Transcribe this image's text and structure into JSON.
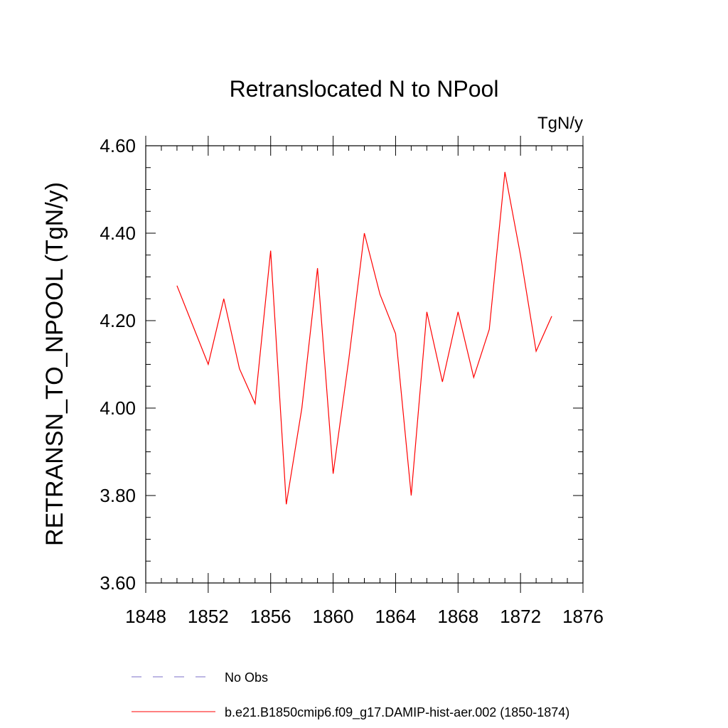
{
  "chart_data": {
    "type": "line",
    "title": "Retranslocated N to NPool",
    "units_label": "TgN/y",
    "ylabel": "RETRANSN_TO_NPOOL  (TgN/y)",
    "xlabel": "",
    "xlim": [
      1848,
      1876
    ],
    "ylim": [
      3.6,
      4.6
    ],
    "x_ticks": [
      1848,
      1852,
      1856,
      1860,
      1864,
      1868,
      1872,
      1876
    ],
    "x_tick_labels": [
      "1848",
      "1852",
      "1856",
      "1860",
      "1864",
      "1868",
      "1872",
      "1876"
    ],
    "y_ticks": [
      3.6,
      3.8,
      4.0,
      4.2,
      4.4,
      4.6
    ],
    "y_tick_labels": [
      "3.60",
      "3.80",
      "4.00",
      "4.20",
      "4.40",
      "4.60"
    ],
    "grid": false,
    "legend_position": "bottom",
    "series": [
      {
        "name": "No Obs",
        "color": "#7b6fc7",
        "dash": "dashed",
        "x": [],
        "values": []
      },
      {
        "name": "b.e21.B1850cmip6.f09_g17.DAMIP-hist-aer.002 (1850-1874)",
        "color": "#ff0000",
        "dash": "solid",
        "x": [
          1850,
          1851,
          1852,
          1853,
          1854,
          1855,
          1856,
          1857,
          1858,
          1859,
          1860,
          1861,
          1862,
          1863,
          1864,
          1865,
          1866,
          1867,
          1868,
          1869,
          1870,
          1871,
          1872,
          1873,
          1874
        ],
        "values": [
          4.28,
          4.19,
          4.1,
          4.25,
          4.09,
          4.01,
          4.36,
          3.78,
          4.0,
          4.32,
          3.85,
          4.11,
          4.4,
          4.26,
          4.17,
          3.8,
          4.22,
          4.06,
          4.22,
          4.07,
          4.18,
          4.54,
          4.35,
          4.13,
          4.21
        ]
      }
    ]
  }
}
